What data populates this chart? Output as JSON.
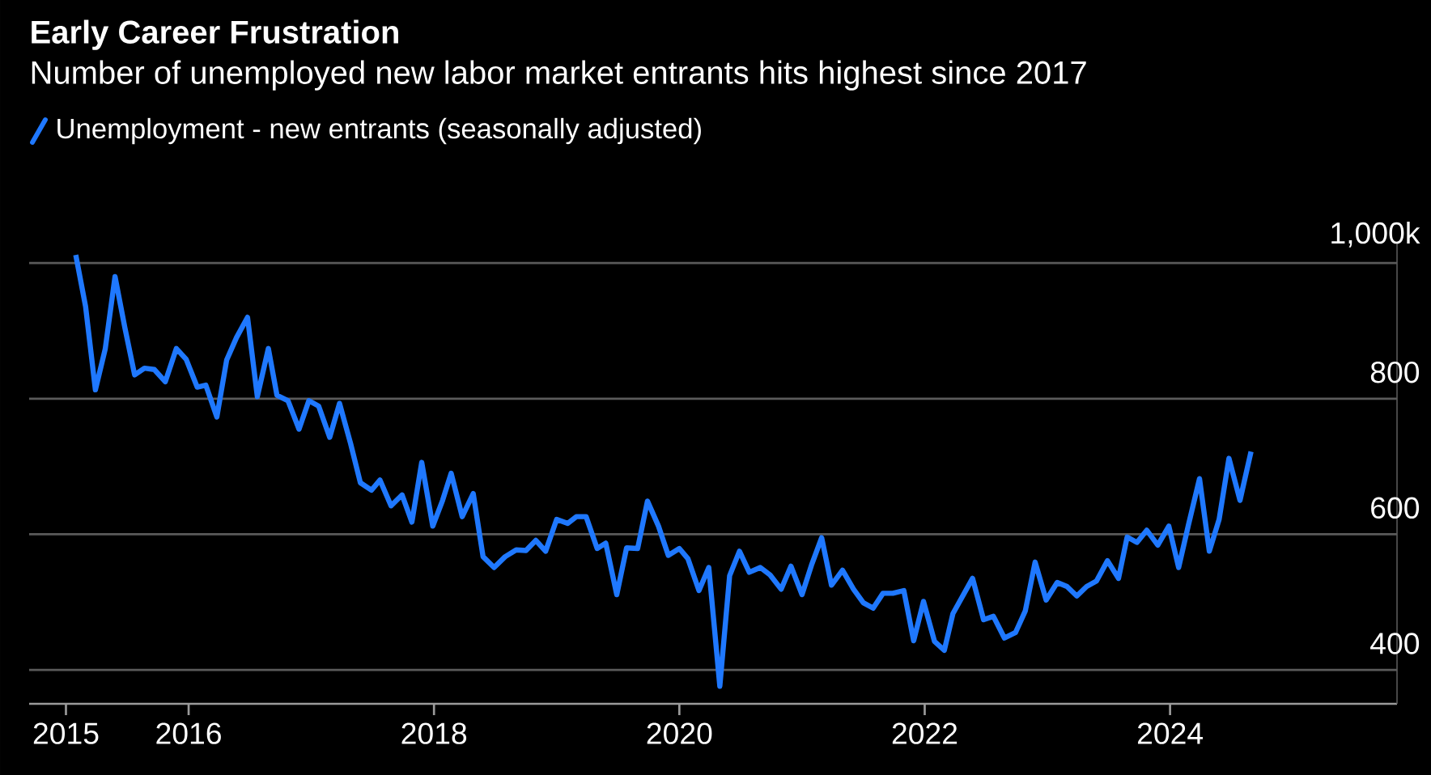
{
  "chart_data": {
    "type": "line",
    "title": "Early Career Frustration",
    "subtitle": "Number of unemployed new labor market entrants hits highest since 2017",
    "x": [
      2015.08,
      2015.16,
      2015.24,
      2015.32,
      2015.4,
      2015.48,
      2015.56,
      2015.64,
      2015.72,
      2015.81,
      2015.9,
      2015.98,
      2016.07,
      2016.14,
      2016.23,
      2016.31,
      2016.39,
      2016.48,
      2016.56,
      2016.65,
      2016.72,
      2016.81,
      2016.9,
      2016.98,
      2017.06,
      2017.15,
      2017.23,
      2017.32,
      2017.4,
      2017.49,
      2017.56,
      2017.65,
      2017.74,
      2017.82,
      2017.9,
      2017.99,
      2018.07,
      2018.14,
      2018.23,
      2018.32,
      2018.4,
      2018.49,
      2018.58,
      2018.67,
      2018.75,
      2018.83,
      2018.91,
      2019.0,
      2019.09,
      2019.16,
      2019.24,
      2019.33,
      2019.4,
      2019.49,
      2019.57,
      2019.66,
      2019.74,
      2019.83,
      2019.91,
      2020.0,
      2020.07,
      2020.16,
      2020.24,
      2020.33,
      2020.41,
      2020.49,
      2020.57,
      2020.66,
      2020.74,
      2020.83,
      2020.91,
      2021.0,
      2021.08,
      2021.16,
      2021.24,
      2021.33,
      2021.42,
      2021.5,
      2021.58,
      2021.66,
      2021.74,
      2021.83,
      2021.91,
      2021.99,
      2022.08,
      2022.16,
      2022.23,
      2022.39,
      2022.48,
      2022.56,
      2022.65,
      2022.74,
      2022.82,
      2022.9,
      2022.99,
      2023.08,
      2023.16,
      2023.24,
      2023.32,
      2023.4,
      2023.49,
      2023.58,
      2023.65,
      2023.73,
      2023.81,
      2023.9,
      2023.99,
      2024.07,
      2024.15,
      2024.24,
      2024.32,
      2024.4,
      2024.48,
      2024.57,
      2024.66
    ],
    "series": [
      {
        "name": "Unemployment - new entrants (seasonally adjusted)",
        "color": "#1f78ff",
        "values": [
          1012,
          936,
          813,
          873,
          980,
          905,
          835,
          845,
          843,
          825,
          874,
          858,
          817,
          820,
          773,
          857,
          890,
          920,
          803,
          874,
          805,
          797,
          755,
          797,
          789,
          743,
          793,
          734,
          676,
          665,
          680,
          642,
          658,
          618,
          706,
          612,
          650,
          690,
          626,
          660,
          567,
          551,
          567,
          577,
          576,
          591,
          575,
          622,
          616,
          626,
          626,
          579,
          587,
          511,
          580,
          579,
          649,
          612,
          569,
          579,
          564,
          517,
          551,
          376,
          539,
          575,
          544,
          551,
          540,
          519,
          553,
          511,
          556,
          595,
          525,
          547,
          519,
          499,
          491,
          513,
          513,
          517,
          443,
          501,
          442,
          429,
          483,
          535,
          474,
          479,
          447,
          455,
          487,
          559,
          503,
          529,
          523,
          509,
          523,
          531,
          561,
          535,
          596,
          588,
          606,
          584,
          612,
          551,
          614,
          682,
          575,
          622,
          712,
          650,
          722
        ]
      }
    ],
    "xlim": [
      2014.7,
      2025.85
    ],
    "ylim": [
      350,
      1030
    ],
    "xticks": [
      2015,
      2016,
      2018,
      2020,
      2022,
      2024
    ],
    "yticks": [
      400,
      600,
      800,
      {
        "value": 1000,
        "label": "1,000k"
      }
    ],
    "grid": "y",
    "legend": "top left",
    "marker": "none",
    "line_style": "solid"
  }
}
